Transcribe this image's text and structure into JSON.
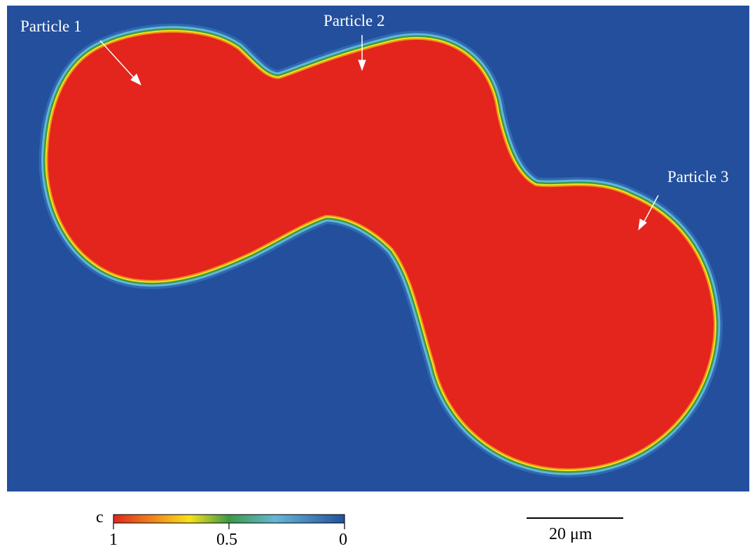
{
  "particles": [
    {
      "label": "Particle 1"
    },
    {
      "label": "Particle 2"
    },
    {
      "label": "Particle 3"
    }
  ],
  "colorbar": {
    "variable": "c",
    "ticks": [
      "1",
      "0.5",
      "0"
    ],
    "range": [
      1,
      0
    ],
    "colors": [
      "#e0261c",
      "#f7e21a",
      "#3b9a47",
      "#64b7d6",
      "#22509e"
    ]
  },
  "scalebar": {
    "label": "20 μm"
  },
  "colors": {
    "background_matrix": "#234f9c",
    "particle_fill": "#e3251d",
    "annotation": "#ffffff"
  }
}
